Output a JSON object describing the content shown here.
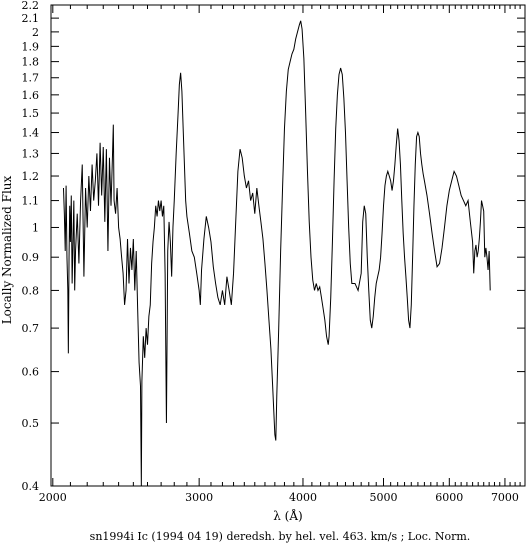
{
  "chart_data": {
    "type": "line",
    "title": "",
    "caption": "sn1994i Ic (1994 04 19) deredsh. by hel. vel.   463. km/s ;  Loc. Norm.",
    "xlabel": "λ (Å)",
    "ylabel": "Locally Normalized Flux",
    "xscale": "log",
    "yscale": "log",
    "xlim": [
      1990,
      7400
    ],
    "ylim": [
      0.4,
      2.2
    ],
    "xticks": [
      {
        "value": 2000,
        "label": "2000"
      },
      {
        "value": 3000,
        "label": "3000"
      },
      {
        "value": 4000,
        "label": "4000"
      },
      {
        "value": 5000,
        "label": "5000"
      },
      {
        "value": 6000,
        "label": "6000"
      },
      {
        "value": 7000,
        "label": "7000"
      }
    ],
    "xminor": [
      2100,
      2200,
      2300,
      2400,
      2500,
      2600,
      2700,
      2800,
      2900,
      3100,
      3200,
      3300,
      3400,
      3500,
      3600,
      3700,
      3800,
      3900,
      4100,
      4200,
      4300,
      4400,
      4500,
      4600,
      4700,
      4800,
      4900,
      5100,
      5200,
      5300,
      5400,
      5500,
      5600,
      5700,
      5800,
      5900,
      6100,
      6200,
      6300,
      6400,
      6500,
      6600,
      6700,
      6800,
      6900,
      7100,
      7200,
      7300
    ],
    "yticks": [
      {
        "value": 0.4,
        "label": "0.4"
      },
      {
        "value": 0.5,
        "label": "0.5"
      },
      {
        "value": 0.6,
        "label": "0.6"
      },
      {
        "value": 0.7,
        "label": "0.7"
      },
      {
        "value": 0.8,
        "label": "0.8"
      },
      {
        "value": 0.9,
        "label": "0.9"
      },
      {
        "value": 1.0,
        "label": "1"
      },
      {
        "value": 1.1,
        "label": "1.1"
      },
      {
        "value": 1.2,
        "label": "1.2"
      },
      {
        "value": 1.3,
        "label": "1.3"
      },
      {
        "value": 1.4,
        "label": "1.4"
      },
      {
        "value": 1.5,
        "label": "1.5"
      },
      {
        "value": 1.6,
        "label": "1.6"
      },
      {
        "value": 1.7,
        "label": "1.7"
      },
      {
        "value": 1.8,
        "label": "1.8"
      },
      {
        "value": 1.9,
        "label": "1.9"
      },
      {
        "value": 2.0,
        "label": "2"
      },
      {
        "value": 2.1,
        "label": "2.1"
      },
      {
        "value": 2.2,
        "label": "2.2"
      }
    ],
    "series": [
      {
        "color": "#000000",
        "points": [
          [
            2060,
            1.15
          ],
          [
            2065,
            1.05
          ],
          [
            2070,
            0.92
          ],
          [
            2075,
            1.16
          ],
          [
            2080,
            0.9
          ],
          [
            2085,
            0.8
          ],
          [
            2088,
            0.64
          ],
          [
            2092,
            0.9
          ],
          [
            2096,
            1.08
          ],
          [
            2100,
            0.95
          ],
          [
            2105,
            1.12
          ],
          [
            2110,
            0.82
          ],
          [
            2115,
            0.95
          ],
          [
            2120,
            1.1
          ],
          [
            2125,
            0.8
          ],
          [
            2130,
            0.92
          ],
          [
            2140,
            1.05
          ],
          [
            2150,
            0.88
          ],
          [
            2160,
            1.1
          ],
          [
            2170,
            1.25
          ],
          [
            2180,
            0.84
          ],
          [
            2190,
            1.15
          ],
          [
            2200,
            1.0
          ],
          [
            2210,
            1.2
          ],
          [
            2220,
            1.06
          ],
          [
            2230,
            1.25
          ],
          [
            2240,
            1.1
          ],
          [
            2250,
            1.18
          ],
          [
            2260,
            1.3
          ],
          [
            2270,
            1.08
          ],
          [
            2280,
            1.35
          ],
          [
            2290,
            1.12
          ],
          [
            2300,
            1.33
          ],
          [
            2310,
            1.02
          ],
          [
            2320,
            1.32
          ],
          [
            2330,
            0.92
          ],
          [
            2340,
            1.28
          ],
          [
            2350,
            1.08
          ],
          [
            2360,
            1.3
          ],
          [
            2365,
            1.44
          ],
          [
            2370,
            1.1
          ],
          [
            2380,
            1.05
          ],
          [
            2390,
            1.15
          ],
          [
            2400,
            1.0
          ],
          [
            2410,
            0.96
          ],
          [
            2420,
            0.9
          ],
          [
            2430,
            0.85
          ],
          [
            2440,
            0.76
          ],
          [
            2450,
            0.8
          ],
          [
            2460,
            0.96
          ],
          [
            2470,
            0.82
          ],
          [
            2480,
            0.93
          ],
          [
            2490,
            0.86
          ],
          [
            2500,
            0.96
          ],
          [
            2510,
            0.8
          ],
          [
            2520,
            0.92
          ],
          [
            2530,
            0.75
          ],
          [
            2540,
            0.62
          ],
          [
            2550,
            0.57
          ],
          [
            2556,
            0.4
          ],
          [
            2560,
            0.58
          ],
          [
            2570,
            0.68
          ],
          [
            2580,
            0.63
          ],
          [
            2590,
            0.7
          ],
          [
            2600,
            0.66
          ],
          [
            2610,
            0.73
          ],
          [
            2620,
            0.76
          ],
          [
            2630,
            0.88
          ],
          [
            2640,
            0.95
          ],
          [
            2650,
            1.0
          ],
          [
            2660,
            1.08
          ],
          [
            2670,
            1.04
          ],
          [
            2680,
            1.1
          ],
          [
            2690,
            1.06
          ],
          [
            2700,
            1.1
          ],
          [
            2710,
            1.04
          ],
          [
            2720,
            1.08
          ],
          [
            2730,
            0.85
          ],
          [
            2740,
            0.5
          ],
          [
            2750,
            0.92
          ],
          [
            2760,
            1.02
          ],
          [
            2770,
            0.95
          ],
          [
            2780,
            0.84
          ],
          [
            2790,
            1.0
          ],
          [
            2800,
            1.1
          ],
          [
            2815,
            1.3
          ],
          [
            2830,
            1.5
          ],
          [
            2840,
            1.66
          ],
          [
            2850,
            1.73
          ],
          [
            2860,
            1.62
          ],
          [
            2870,
            1.42
          ],
          [
            2880,
            1.25
          ],
          [
            2890,
            1.1
          ],
          [
            2900,
            1.04
          ],
          [
            2920,
            0.98
          ],
          [
            2940,
            0.92
          ],
          [
            2960,
            0.9
          ],
          [
            2980,
            0.85
          ],
          [
            3000,
            0.8
          ],
          [
            3010,
            0.76
          ],
          [
            3020,
            0.86
          ],
          [
            3040,
            0.96
          ],
          [
            3060,
            1.04
          ],
          [
            3080,
            1.0
          ],
          [
            3100,
            0.95
          ],
          [
            3120,
            0.87
          ],
          [
            3140,
            0.82
          ],
          [
            3160,
            0.78
          ],
          [
            3180,
            0.76
          ],
          [
            3200,
            0.8
          ],
          [
            3220,
            0.76
          ],
          [
            3240,
            0.84
          ],
          [
            3260,
            0.8
          ],
          [
            3280,
            0.76
          ],
          [
            3300,
            0.85
          ],
          [
            3320,
            1.02
          ],
          [
            3340,
            1.22
          ],
          [
            3360,
            1.32
          ],
          [
            3380,
            1.28
          ],
          [
            3400,
            1.2
          ],
          [
            3420,
            1.15
          ],
          [
            3440,
            1.18
          ],
          [
            3460,
            1.1
          ],
          [
            3480,
            1.13
          ],
          [
            3500,
            1.05
          ],
          [
            3520,
            1.15
          ],
          [
            3540,
            1.08
          ],
          [
            3560,
            1.02
          ],
          [
            3580,
            0.96
          ],
          [
            3600,
            0.88
          ],
          [
            3620,
            0.8
          ],
          [
            3640,
            0.72
          ],
          [
            3660,
            0.65
          ],
          [
            3680,
            0.56
          ],
          [
            3700,
            0.48
          ],
          [
            3710,
            0.47
          ],
          [
            3720,
            0.55
          ],
          [
            3740,
            0.7
          ],
          [
            3760,
            0.92
          ],
          [
            3780,
            1.15
          ],
          [
            3800,
            1.42
          ],
          [
            3820,
            1.62
          ],
          [
            3840,
            1.75
          ],
          [
            3860,
            1.8
          ],
          [
            3880,
            1.85
          ],
          [
            3900,
            1.88
          ],
          [
            3920,
            1.95
          ],
          [
            3940,
            2.0
          ],
          [
            3960,
            2.05
          ],
          [
            3975,
            2.08
          ],
          [
            3990,
            2.02
          ],
          [
            4010,
            1.82
          ],
          [
            4030,
            1.5
          ],
          [
            4050,
            1.22
          ],
          [
            4070,
            1.02
          ],
          [
            4090,
            0.9
          ],
          [
            4110,
            0.83
          ],
          [
            4130,
            0.8
          ],
          [
            4150,
            0.82
          ],
          [
            4170,
            0.8
          ],
          [
            4190,
            0.81
          ],
          [
            4210,
            0.78
          ],
          [
            4230,
            0.75
          ],
          [
            4250,
            0.72
          ],
          [
            4270,
            0.68
          ],
          [
            4290,
            0.66
          ],
          [
            4300,
            0.68
          ],
          [
            4320,
            0.78
          ],
          [
            4340,
            0.95
          ],
          [
            4360,
            1.18
          ],
          [
            4380,
            1.42
          ],
          [
            4400,
            1.6
          ],
          [
            4420,
            1.72
          ],
          [
            4440,
            1.76
          ],
          [
            4460,
            1.72
          ],
          [
            4480,
            1.58
          ],
          [
            4500,
            1.4
          ],
          [
            4520,
            1.18
          ],
          [
            4540,
            1.0
          ],
          [
            4560,
            0.88
          ],
          [
            4580,
            0.82
          ],
          [
            4620,
            0.82
          ],
          [
            4660,
            0.8
          ],
          [
            4700,
            0.85
          ],
          [
            4720,
            1.02
          ],
          [
            4740,
            1.08
          ],
          [
            4760,
            1.05
          ],
          [
            4780,
            0.9
          ],
          [
            4800,
            0.8
          ],
          [
            4820,
            0.72
          ],
          [
            4840,
            0.7
          ],
          [
            4860,
            0.73
          ],
          [
            4880,
            0.78
          ],
          [
            4900,
            0.82
          ],
          [
            4920,
            0.84
          ],
          [
            4940,
            0.86
          ],
          [
            4960,
            0.9
          ],
          [
            4980,
            0.98
          ],
          [
            5000,
            1.08
          ],
          [
            5020,
            1.16
          ],
          [
            5040,
            1.2
          ],
          [
            5060,
            1.22
          ],
          [
            5080,
            1.2
          ],
          [
            5100,
            1.18
          ],
          [
            5120,
            1.14
          ],
          [
            5140,
            1.18
          ],
          [
            5160,
            1.25
          ],
          [
            5180,
            1.34
          ],
          [
            5200,
            1.42
          ],
          [
            5220,
            1.36
          ],
          [
            5240,
            1.25
          ],
          [
            5260,
            1.1
          ],
          [
            5280,
            0.98
          ],
          [
            5300,
            0.9
          ],
          [
            5320,
            0.84
          ],
          [
            5340,
            0.78
          ],
          [
            5360,
            0.72
          ],
          [
            5380,
            0.7
          ],
          [
            5400,
            0.76
          ],
          [
            5420,
            0.9
          ],
          [
            5440,
            1.08
          ],
          [
            5460,
            1.25
          ],
          [
            5480,
            1.38
          ],
          [
            5500,
            1.4
          ],
          [
            5520,
            1.38
          ],
          [
            5540,
            1.3
          ],
          [
            5560,
            1.25
          ],
          [
            5580,
            1.21
          ],
          [
            5600,
            1.18
          ],
          [
            5640,
            1.12
          ],
          [
            5680,
            1.05
          ],
          [
            5720,
            0.98
          ],
          [
            5760,
            0.92
          ],
          [
            5800,
            0.87
          ],
          [
            5840,
            0.88
          ],
          [
            5880,
            0.93
          ],
          [
            5920,
            1.0
          ],
          [
            5960,
            1.08
          ],
          [
            6000,
            1.14
          ],
          [
            6040,
            1.18
          ],
          [
            6080,
            1.22
          ],
          [
            6120,
            1.2
          ],
          [
            6160,
            1.16
          ],
          [
            6200,
            1.12
          ],
          [
            6240,
            1.1
          ],
          [
            6280,
            1.08
          ],
          [
            6320,
            1.1
          ],
          [
            6360,
            1.02
          ],
          [
            6400,
            0.95
          ],
          [
            6420,
            0.85
          ],
          [
            6440,
            0.92
          ],
          [
            6460,
            0.94
          ],
          [
            6480,
            0.9
          ],
          [
            6500,
            0.92
          ],
          [
            6520,
            0.96
          ],
          [
            6540,
            1.02
          ],
          [
            6560,
            1.1
          ],
          [
            6580,
            1.08
          ],
          [
            6600,
            1.06
          ],
          [
            6620,
            0.9
          ],
          [
            6640,
            0.93
          ],
          [
            6660,
            0.9
          ],
          [
            6680,
            0.86
          ],
          [
            6700,
            0.92
          ],
          [
            6720,
            0.8
          ]
        ]
      }
    ]
  }
}
